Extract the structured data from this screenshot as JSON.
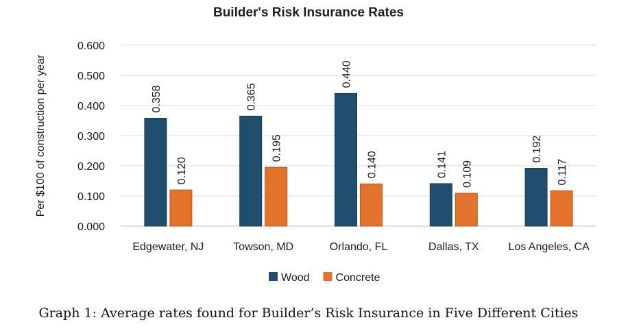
{
  "chart_data": {
    "type": "bar",
    "title": "Builder's Risk Insurance Rates",
    "ylabel": "Per $100 of construction per year",
    "xlabel": "",
    "categories": [
      "Edgewater, NJ",
      "Towson, MD",
      "Orlando, FL",
      "Dallas, TX",
      "Los Angeles, CA"
    ],
    "series": [
      {
        "name": "Wood",
        "values": [
          0.358,
          0.365,
          0.44,
          0.141,
          0.192
        ],
        "labels": [
          "0.358",
          "0.365",
          "0.440",
          "0.141",
          "0.192"
        ],
        "color": "#1f4e6e"
      },
      {
        "name": "Concrete",
        "values": [
          0.12,
          0.195,
          0.14,
          0.109,
          0.117
        ],
        "labels": [
          "0.120",
          "0.195",
          "0.140",
          "0.109",
          "0.117"
        ],
        "color": "#e3732a"
      }
    ],
    "ylim": [
      0,
      0.6
    ],
    "yticks": [
      "0.000",
      "0.100",
      "0.200",
      "0.300",
      "0.400",
      "0.500",
      "0.600"
    ],
    "grid": true,
    "legend": "bottom"
  },
  "caption": "Graph 1: Average rates found for Builder’s Risk Insurance in Five Different Cities"
}
